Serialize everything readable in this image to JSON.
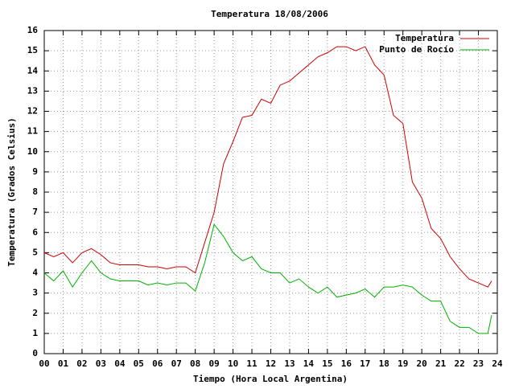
{
  "chart_data": {
    "type": "line",
    "title": "Temperatura 18/08/2006",
    "xlabel": "Tiempo (Hora Local Argentina)",
    "ylabel": "Temperatura (Grados Celsius)",
    "x": [
      0,
      0.5,
      1,
      1.5,
      2,
      2.5,
      3,
      3.5,
      4,
      4.5,
      5,
      5.5,
      6,
      6.5,
      7,
      7.5,
      8,
      8.5,
      9,
      9.5,
      10,
      10.5,
      11,
      11.5,
      12,
      12.5,
      13,
      13.5,
      14,
      14.5,
      15,
      15.5,
      16,
      16.5,
      17,
      17.5,
      18,
      18.5,
      19,
      19.5,
      20,
      20.5,
      21,
      21.5,
      22,
      22.5,
      23,
      23.5,
      23.7
    ],
    "series": [
      {
        "name": "Temperatura",
        "color": "#cc0000",
        "values": [
          5.0,
          4.8,
          5.0,
          4.5,
          5.0,
          5.2,
          4.9,
          4.5,
          4.4,
          4.4,
          4.4,
          4.3,
          4.3,
          4.2,
          4.3,
          4.3,
          4.0,
          5.5,
          7.0,
          9.4,
          10.5,
          11.7,
          11.8,
          12.6,
          12.4,
          13.3,
          13.5,
          13.9,
          14.3,
          14.7,
          14.9,
          15.2,
          15.2,
          15.0,
          15.2,
          14.3,
          13.8,
          11.8,
          11.4,
          8.5,
          7.7,
          6.2,
          5.7,
          4.8,
          4.2,
          3.7,
          3.5,
          3.3,
          3.6
        ]
      },
      {
        "name": "Punto de Rocío",
        "color": "#00b000",
        "values": [
          4.0,
          3.6,
          4.1,
          3.3,
          4.0,
          4.6,
          4.0,
          3.7,
          3.6,
          3.6,
          3.6,
          3.4,
          3.5,
          3.4,
          3.5,
          3.5,
          3.1,
          4.5,
          6.4,
          5.8,
          5.0,
          4.6,
          4.8,
          4.2,
          4.0,
          4.0,
          3.5,
          3.7,
          3.3,
          3.0,
          3.3,
          2.8,
          2.9,
          3.0,
          3.2,
          2.8,
          3.3,
          3.3,
          3.4,
          3.3,
          2.9,
          2.6,
          2.6,
          1.6,
          1.3,
          1.3,
          1.0,
          1.0,
          1.9
        ]
      }
    ],
    "xlim": [
      0,
      24
    ],
    "xticks": [
      {
        "value": 0,
        "label": "00"
      },
      {
        "value": 1,
        "label": "01"
      },
      {
        "value": 2,
        "label": "02"
      },
      {
        "value": 3,
        "label": "03"
      },
      {
        "value": 4,
        "label": "04"
      },
      {
        "value": 5,
        "label": "05"
      },
      {
        "value": 6,
        "label": "06"
      },
      {
        "value": 7,
        "label": "07"
      },
      {
        "value": 8,
        "label": "08"
      },
      {
        "value": 9,
        "label": "09"
      },
      10,
      11,
      12,
      13,
      14,
      15,
      16,
      17,
      18,
      19,
      20,
      21,
      22,
      23,
      24
    ],
    "ylim": [
      0,
      16
    ],
    "yticks": [
      0,
      1,
      2,
      3,
      4,
      5,
      6,
      7,
      8,
      9,
      10,
      11,
      12,
      13,
      14,
      15,
      16
    ],
    "grid": true,
    "legend": "top-right"
  }
}
